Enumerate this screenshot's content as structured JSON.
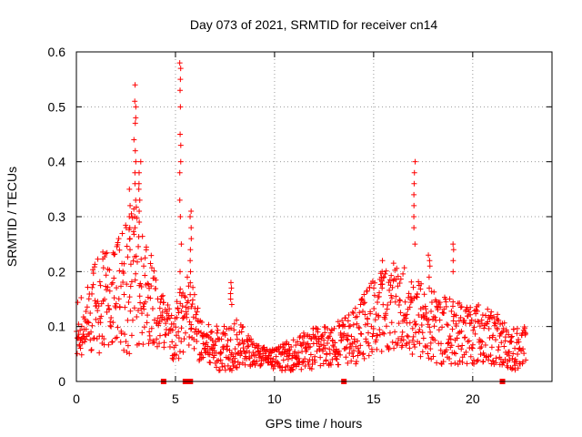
{
  "chart_data": {
    "type": "scatter",
    "title": "Day 073 of 2021, SRMTID for receiver cn14",
    "xlabel": "GPS time / hours",
    "ylabel": "SRMTID / TECUs",
    "xlim": [
      0,
      24
    ],
    "ylim": [
      0,
      0.6
    ],
    "x_ticks": [
      0,
      5,
      10,
      15,
      20
    ],
    "x_tick_labels": [
      "0",
      "5",
      "10",
      "15",
      "20"
    ],
    "y_ticks": [
      0,
      0.1,
      0.2,
      0.3,
      0.4,
      0.5,
      0.6
    ],
    "y_tick_labels": [
      "0",
      "0.1",
      "0.2",
      "0.3",
      "0.4",
      "0.5",
      "0.6"
    ],
    "grid": true,
    "marker": "+",
    "color": "#ff0000",
    "series": [
      {
        "name": "SRMTID",
        "envelope": [
          {
            "x": 0.0,
            "base": 0.09,
            "spread": 0.05
          },
          {
            "x": 0.5,
            "base": 0.11,
            "spread": 0.06
          },
          {
            "x": 1.0,
            "base": 0.13,
            "spread": 0.09
          },
          {
            "x": 1.5,
            "base": 0.15,
            "spread": 0.1
          },
          {
            "x": 2.0,
            "base": 0.16,
            "spread": 0.1
          },
          {
            "x": 2.5,
            "base": 0.18,
            "spread": 0.13
          },
          {
            "x": 3.0,
            "base": 0.2,
            "spread": 0.15
          },
          {
            "x": 3.5,
            "base": 0.17,
            "spread": 0.1
          },
          {
            "x": 4.0,
            "base": 0.13,
            "spread": 0.08
          },
          {
            "x": 4.5,
            "base": 0.09,
            "spread": 0.06
          },
          {
            "x": 5.0,
            "base": 0.08,
            "spread": 0.05
          },
          {
            "x": 5.3,
            "base": 0.12,
            "spread": 0.08
          },
          {
            "x": 5.8,
            "base": 0.12,
            "spread": 0.07
          },
          {
            "x": 6.3,
            "base": 0.07,
            "spread": 0.04
          },
          {
            "x": 7.0,
            "base": 0.06,
            "spread": 0.04
          },
          {
            "x": 8.0,
            "base": 0.07,
            "spread": 0.05
          },
          {
            "x": 9.0,
            "base": 0.05,
            "spread": 0.02
          },
          {
            "x": 10.0,
            "base": 0.04,
            "spread": 0.02
          },
          {
            "x": 11.0,
            "base": 0.05,
            "spread": 0.03
          },
          {
            "x": 12.0,
            "base": 0.06,
            "spread": 0.04
          },
          {
            "x": 13.0,
            "base": 0.07,
            "spread": 0.04
          },
          {
            "x": 14.0,
            "base": 0.08,
            "spread": 0.05
          },
          {
            "x": 15.0,
            "base": 0.12,
            "spread": 0.07
          },
          {
            "x": 16.0,
            "base": 0.14,
            "spread": 0.08
          },
          {
            "x": 17.0,
            "base": 0.12,
            "spread": 0.08
          },
          {
            "x": 18.0,
            "base": 0.1,
            "spread": 0.07
          },
          {
            "x": 19.0,
            "base": 0.09,
            "spread": 0.06
          },
          {
            "x": 20.0,
            "base": 0.09,
            "spread": 0.06
          },
          {
            "x": 21.0,
            "base": 0.08,
            "spread": 0.05
          },
          {
            "x": 22.0,
            "base": 0.06,
            "spread": 0.04
          },
          {
            "x": 22.7,
            "base": 0.06,
            "spread": 0.04
          }
        ],
        "spikes": [
          {
            "x": 2.7,
            "values": [
              0.24,
              0.26,
              0.28,
              0.3,
              0.32,
              0.35
            ]
          },
          {
            "x": 2.95,
            "values": [
              0.28,
              0.3,
              0.33,
              0.36,
              0.38,
              0.4,
              0.42,
              0.44,
              0.47,
              0.48,
              0.5,
              0.51,
              0.54
            ]
          },
          {
            "x": 3.2,
            "values": [
              0.29,
              0.31,
              0.33,
              0.35,
              0.36,
              0.38,
              0.4
            ]
          },
          {
            "x": 5.25,
            "values": [
              0.2,
              0.25,
              0.3,
              0.33,
              0.38,
              0.4,
              0.43,
              0.45,
              0.5,
              0.53,
              0.55,
              0.57,
              0.58
            ]
          },
          {
            "x": 5.75,
            "values": [
              0.2,
              0.22,
              0.24,
              0.26,
              0.28,
              0.3,
              0.31
            ]
          },
          {
            "x": 7.8,
            "values": [
              0.14,
              0.15,
              0.16,
              0.17,
              0.18
            ]
          },
          {
            "x": 15.4,
            "values": [
              0.17,
              0.19,
              0.2,
              0.22
            ]
          },
          {
            "x": 17.05,
            "values": [
              0.25,
              0.28,
              0.3,
              0.32,
              0.34,
              0.36,
              0.38,
              0.4
            ]
          },
          {
            "x": 17.8,
            "values": [
              0.19,
              0.21,
              0.22,
              0.23
            ]
          },
          {
            "x": 19.05,
            "values": [
              0.2,
              0.22,
              0.24,
              0.25
            ]
          }
        ]
      }
    ],
    "gap_markers_x": [
      4.4,
      5.5,
      5.75,
      13.5,
      21.5
    ]
  }
}
